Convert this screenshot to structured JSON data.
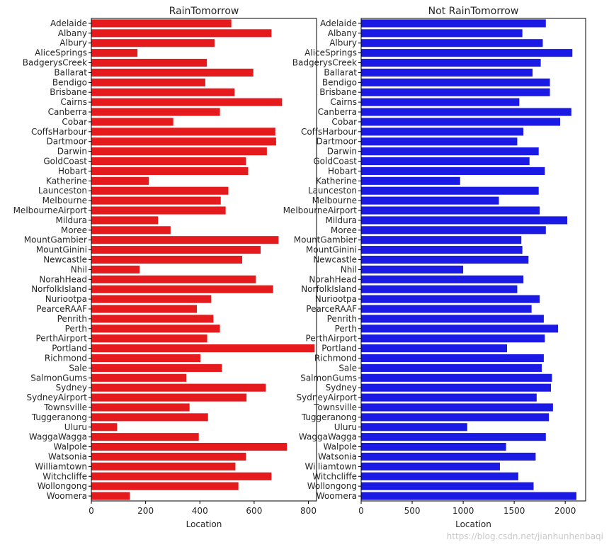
{
  "watermark": "https://blog.csdn.net/jianhunhenbaqi",
  "colors": {
    "rain": "#e41a1c",
    "no_rain": "#1a1ae4",
    "axis": "#000000",
    "text": "#262626"
  },
  "chart_data": [
    {
      "type": "bar",
      "orientation": "horizontal",
      "title": "RainTomorrow",
      "xlabel": "Location",
      "ylabel": "",
      "xlim": [
        0,
        830
      ],
      "xticks": [
        0,
        200,
        400,
        600,
        800
      ],
      "categories": [
        "Adelaide",
        "Albany",
        "Albury",
        "AliceSprings",
        "BadgerysCreek",
        "Ballarat",
        "Bendigo",
        "Brisbane",
        "Cairns",
        "Canberra",
        "Cobar",
        "CoffsHarbour",
        "Dartmoor",
        "Darwin",
        "GoldCoast",
        "Hobart",
        "Katherine",
        "Launceston",
        "Melbourne",
        "MelbourneAirport",
        "Mildura",
        "Moree",
        "MountGambier",
        "MountGinini",
        "Newcastle",
        "Nhil",
        "NorahHead",
        "NorfolkIsland",
        "Nuriootpa",
        "PearceRAAF",
        "Penrith",
        "Perth",
        "PerthAirport",
        "Portland",
        "Richmond",
        "Sale",
        "SalmonGums",
        "Sydney",
        "SydneyAirport",
        "Townsville",
        "Tuggeranong",
        "Uluru",
        "WaggaWagga",
        "Walpole",
        "Watsonia",
        "Williamtown",
        "Witchcliffe",
        "Wollongong",
        "Woomera"
      ],
      "values": [
        516,
        664,
        454,
        170,
        426,
        597,
        420,
        528,
        703,
        474,
        302,
        678,
        681,
        647,
        570,
        578,
        212,
        505,
        477,
        495,
        246,
        292,
        690,
        624,
        556,
        178,
        606,
        670,
        442,
        389,
        450,
        474,
        427,
        823,
        402,
        481,
        350,
        643,
        572,
        362,
        430,
        95,
        396,
        721,
        570,
        531,
        664,
        542,
        142
      ]
    },
    {
      "type": "bar",
      "orientation": "horizontal",
      "title": "Not RainTomorrow",
      "xlabel": "Location",
      "ylabel": "",
      "xlim": [
        0,
        2200
      ],
      "xticks": [
        0,
        500,
        1000,
        1500,
        2000
      ],
      "categories": [
        "Adelaide",
        "Albany",
        "Albury",
        "AliceSprings",
        "BadgerysCreek",
        "Ballarat",
        "Bendigo",
        "Brisbane",
        "Cairns",
        "Canberra",
        "Cobar",
        "CoffsHarbour",
        "Dartmoor",
        "Darwin",
        "GoldCoast",
        "Hobart",
        "Katherine",
        "Launceston",
        "Melbourne",
        "MelbourneAirport",
        "Mildura",
        "Moree",
        "MountGambier",
        "MountGinini",
        "Newcastle",
        "Nhil",
        "NorahHead",
        "NorfolkIsland",
        "Nuriootpa",
        "PearceRAAF",
        "Penrith",
        "Perth",
        "PerthAirport",
        "Portland",
        "Richmond",
        "Sale",
        "SalmonGums",
        "Sydney",
        "SydneyAirport",
        "Townsville",
        "Tuggeranong",
        "Uluru",
        "WaggaWagga",
        "Walpole",
        "Watsonia",
        "Williamtown",
        "Witchcliffe",
        "Wollongong",
        "Woomera"
      ],
      "values": [
        1810,
        1580,
        1780,
        2070,
        1760,
        1680,
        1850,
        1850,
        1550,
        2060,
        1950,
        1590,
        1530,
        1740,
        1650,
        1800,
        970,
        1740,
        1350,
        1750,
        2020,
        1810,
        1570,
        1580,
        1640,
        1000,
        1590,
        1530,
        1750,
        1670,
        1790,
        1930,
        1800,
        1430,
        1790,
        1770,
        1870,
        1860,
        1720,
        1880,
        1840,
        1040,
        1810,
        1420,
        1710,
        1360,
        1540,
        1690,
        2110
      ]
    }
  ]
}
